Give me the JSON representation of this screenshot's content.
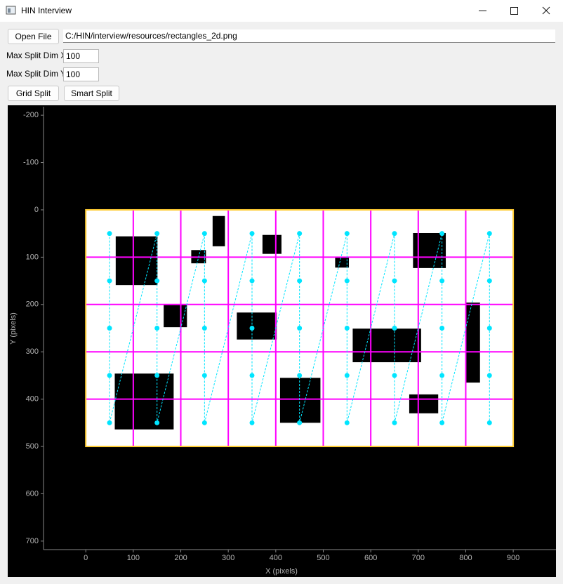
{
  "window": {
    "title": "HIN Interview"
  },
  "controls": {
    "open_file": "Open File",
    "file_path": "C:/HIN/interview/resources/rectangles_2d.png",
    "max_split_x_label": "Max Split Dim X",
    "max_split_x_value": "100",
    "max_split_y_label": "Max Split Dim Y",
    "max_split_y_value": "100",
    "grid_split": "Grid Split",
    "smart_split": "Smart Split"
  },
  "chart_data": {
    "type": "line",
    "xlabel": "X (pixels)",
    "ylabel": "Y (pixels)",
    "xlim": [
      -89,
      990
    ],
    "ylim": [
      718,
      -218
    ],
    "xticks": [
      0,
      100,
      200,
      300,
      400,
      500,
      600,
      700,
      800,
      900
    ],
    "yticks": [
      -200,
      -100,
      0,
      100,
      200,
      300,
      400,
      500,
      600,
      700
    ],
    "image_extent": {
      "x": [
        0,
        900
      ],
      "y": [
        0,
        500
      ]
    },
    "split_x": [
      100,
      200,
      300,
      400,
      500,
      600,
      700,
      800
    ],
    "split_y": [
      100,
      200,
      300,
      400
    ],
    "split_color": "#ff00ff",
    "border_color": "#ffcc33",
    "color": "#00e5ff",
    "rectangles": [
      {
        "x0": 63,
        "x1": 151,
        "y0": 56,
        "y1": 159
      },
      {
        "x0": 222,
        "x1": 253,
        "y0": 85,
        "y1": 113
      },
      {
        "x0": 267,
        "x1": 293,
        "y0": 13,
        "y1": 77
      },
      {
        "x0": 372,
        "x1": 412,
        "y0": 53,
        "y1": 93
      },
      {
        "x0": 525,
        "x1": 554,
        "y0": 99,
        "y1": 122
      },
      {
        "x0": 689,
        "x1": 758,
        "y0": 49,
        "y1": 123
      },
      {
        "x0": 164,
        "x1": 213,
        "y0": 200,
        "y1": 248
      },
      {
        "x0": 318,
        "x1": 402,
        "y0": 217,
        "y1": 274
      },
      {
        "x0": 562,
        "x1": 706,
        "y0": 251,
        "y1": 322
      },
      {
        "x0": 800,
        "x1": 830,
        "y0": 196,
        "y1": 365
      },
      {
        "x0": 61,
        "x1": 185,
        "y0": 346,
        "y1": 464
      },
      {
        "x0": 409,
        "x1": 494,
        "y0": 355,
        "y1": 450
      },
      {
        "x0": 681,
        "x1": 742,
        "y0": 390,
        "y1": 430
      }
    ],
    "x": [
      50,
      50,
      50,
      50,
      50,
      150,
      150,
      150,
      150,
      150,
      250,
      250,
      250,
      250,
      250,
      350,
      350,
      350,
      350,
      350,
      450,
      450,
      450,
      450,
      450,
      550,
      550,
      550,
      550,
      550,
      650,
      650,
      650,
      650,
      650,
      750,
      750,
      750,
      750,
      750,
      850,
      850,
      850,
      850,
      850
    ],
    "values": [
      50,
      150,
      250,
      350,
      450,
      50,
      150,
      250,
      350,
      450,
      50,
      150,
      250,
      350,
      450,
      50,
      150,
      250,
      350,
      450,
      50,
      150,
      250,
      350,
      450,
      50,
      150,
      250,
      350,
      450,
      50,
      150,
      250,
      350,
      450,
      50,
      150,
      250,
      350,
      450,
      50,
      150,
      250,
      350,
      450
    ]
  }
}
